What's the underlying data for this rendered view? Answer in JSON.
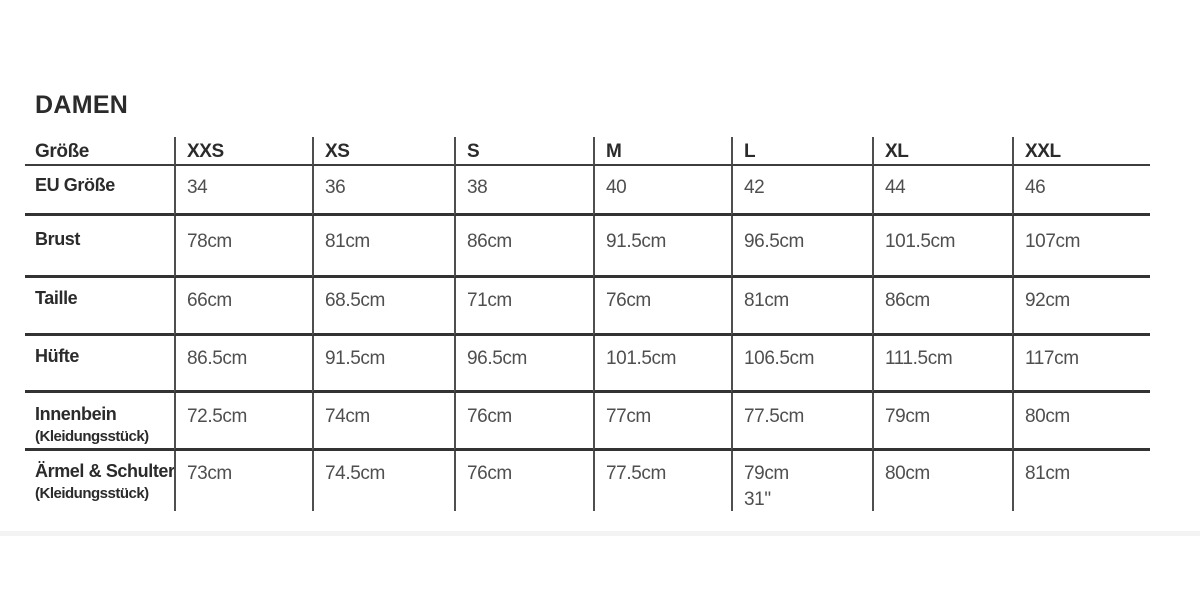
{
  "page_title": "DAMEN",
  "chart_data": {
    "type": "table",
    "title": "DAMEN",
    "header": {
      "label": "Größe",
      "sizes": [
        "XXS",
        "XS",
        "S",
        "M",
        "L",
        "XL",
        "XXL"
      ]
    },
    "rows": [
      {
        "label": "EU Größe",
        "values": [
          "34",
          "36",
          "38",
          "40",
          "42",
          "44",
          "46"
        ]
      },
      {
        "label": "Brust",
        "values": [
          "78cm",
          "81cm",
          "86cm",
          "91.5cm",
          "96.5cm",
          "101.5cm",
          "107cm"
        ]
      },
      {
        "label": "Taille",
        "values": [
          "66cm",
          "68.5cm",
          "71cm",
          "76cm",
          "81cm",
          "86cm",
          "92cm"
        ]
      },
      {
        "label": "Hüfte",
        "values": [
          "86.5cm",
          "91.5cm",
          "96.5cm",
          "101.5cm",
          "106.5cm",
          "111.5cm",
          "117cm"
        ]
      },
      {
        "label": "Innenbein",
        "sublabel": "(Kleidungsstück)",
        "values": [
          "72.5cm",
          "74cm",
          "76cm",
          "77cm",
          "77.5cm",
          "79cm",
          "80cm"
        ]
      },
      {
        "label": "Ärmel & Schulter",
        "sublabel": "(Kleidungsstück)",
        "values": [
          "73cm",
          "74.5cm",
          "76cm",
          "77.5cm",
          "79cm\n31\"",
          "80cm",
          "81cm"
        ]
      }
    ],
    "layout": {
      "grid": "horizontal rules between rows, thin vertical separators between columns, no outer border"
    }
  },
  "colors": {
    "rule_heavy": "#333333",
    "rule_header": "#3d3d3d",
    "vline": "#4f4f4f",
    "text_label": "#2b2b2b",
    "text_value": "#4f4f4f",
    "bottom_stripe": "#f3f3f3",
    "background": "#ffffff"
  }
}
